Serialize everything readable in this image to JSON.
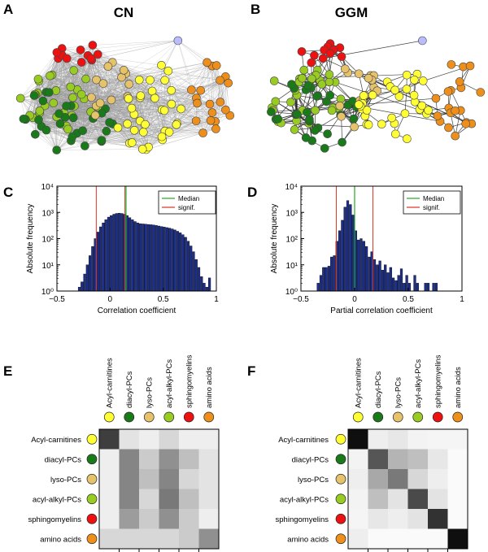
{
  "panels": {
    "A": {
      "letter": "A",
      "title": "CN"
    },
    "B": {
      "letter": "B",
      "title": "GGM"
    },
    "C": {
      "letter": "C"
    },
    "D": {
      "letter": "D"
    },
    "E": {
      "letter": "E"
    },
    "F": {
      "letter": "F"
    }
  },
  "colors": {
    "Acyl-carnitines": "#ffff33",
    "diacyl-PCs": "#1a7a1a",
    "lyso-PCs": "#e6c36a",
    "acyl-alkyl-PCs": "#99cc22",
    "sphingomyelins": "#ee1111",
    "amino acids": "#ee8f1c",
    "other": "#bbbbff",
    "bar": "#1c2f8a",
    "median": "#22aa22",
    "signif": "#dd3322"
  },
  "classes": [
    "Acyl-carnitines",
    "diacyl-PCs",
    "lyso-PCs",
    "acyl-alkyl-PCs",
    "sphingomyelins",
    "amino acids"
  ],
  "chart_data": [
    {
      "id": "C",
      "type": "bar",
      "xlabel": "Correlation coefficient",
      "ylabel": "Absolute frequency",
      "xlim": [
        -0.5,
        1
      ],
      "ylim_log10": [
        0,
        4
      ],
      "xticks": [
        "−0.5",
        "0",
        "0.5",
        "1"
      ],
      "yticks": [
        "10⁰",
        "10¹",
        "10²",
        "10³",
        "10⁴"
      ],
      "legend": [
        {
          "label": "Median"
        },
        {
          "label": "signif."
        }
      ],
      "median": 0.15,
      "signif": [
        -0.13,
        0.14
      ],
      "bin_start": -0.3,
      "bin_width": 0.025,
      "log10_counts": [
        0.15,
        0.35,
        0.65,
        1.0,
        1.35,
        1.7,
        2.0,
        2.25,
        2.45,
        2.6,
        2.72,
        2.82,
        2.88,
        2.93,
        2.96,
        2.97,
        2.96,
        2.93,
        2.88,
        2.8,
        2.72,
        2.65,
        2.6,
        2.57,
        2.56,
        2.55,
        2.54,
        2.53,
        2.52,
        2.5,
        2.48,
        2.46,
        2.44,
        2.42,
        2.4,
        2.37,
        2.33,
        2.28,
        2.22,
        2.15,
        2.05,
        1.9,
        1.72,
        1.5,
        1.2,
        0.9,
        0.55,
        0.3,
        0.15,
        0.5
      ]
    },
    {
      "id": "D",
      "type": "bar",
      "xlabel": "Partial correlation coefficient",
      "ylabel": "Absolute frequency",
      "xlim": [
        -0.5,
        1
      ],
      "ylim_log10": [
        0,
        4
      ],
      "xticks": [
        "−0.5",
        "0",
        "0.5",
        "1"
      ],
      "yticks": [
        "10⁰",
        "10¹",
        "10²",
        "10³",
        "10⁴"
      ],
      "legend": [
        {
          "label": "Median"
        },
        {
          "label": "signif."
        }
      ],
      "median": 0.0,
      "signif": [
        -0.17,
        0.17
      ],
      "bin_start": -0.35,
      "bin_width": 0.025,
      "log10_counts": [
        0.3,
        0.6,
        0.9,
        0.9,
        0.95,
        1.3,
        1.35,
        1.9,
        2.3,
        2.7,
        3.2,
        3.45,
        3.3,
        2.9,
        2.3,
        1.95,
        2.0,
        1.9,
        1.7,
        1.3,
        1.5,
        1.2,
        1.0,
        1.15,
        0.8,
        1.0,
        0.7,
        0.9,
        0.5,
        0.4,
        0.6,
        0.85,
        0.3,
        0.6,
        0.3,
        0.0,
        0.6,
        0.3,
        0.0,
        0.0,
        0.3,
        0.3,
        0.0,
        0.3,
        0.3
      ]
    },
    {
      "id": "E",
      "type": "heatmap",
      "rows": [
        "Acyl-carnitines",
        "diacyl-PCs",
        "lyso-PCs",
        "acyl-alkyl-PCs",
        "sphingomyelins",
        "amino acids"
      ],
      "cols": [
        "Acyl-carnitines",
        "diacyl-PCs",
        "lyso-PCs",
        "acyl-alkyl-PCs",
        "sphingomyelins",
        "amino acids"
      ],
      "values": [
        [
          0.8,
          0.1,
          0.05,
          0.15,
          0.05,
          0.05
        ],
        [
          0.05,
          0.5,
          0.2,
          0.45,
          0.25,
          0.1
        ],
        [
          0.05,
          0.5,
          0.25,
          0.5,
          0.15,
          0.1
        ],
        [
          0.05,
          0.5,
          0.15,
          0.55,
          0.25,
          0.1
        ],
        [
          0.05,
          0.4,
          0.2,
          0.45,
          0.2,
          0.05
        ],
        [
          0.15,
          0.15,
          0.15,
          0.15,
          0.2,
          0.45
        ]
      ]
    },
    {
      "id": "F",
      "type": "heatmap",
      "rows": [
        "Acyl-carnitines",
        "diacyl-PCs",
        "lyso-PCs",
        "acyl-alkyl-PCs",
        "sphingomyelins",
        "amino acids"
      ],
      "cols": [
        "Acyl-carnitines",
        "diacyl-PCs",
        "lyso-PCs",
        "acyl-alkyl-PCs",
        "sphingomyelins",
        "amino acids"
      ],
      "values": [
        [
          1.0,
          0.05,
          0.08,
          0.03,
          0.02,
          0.02
        ],
        [
          0.03,
          0.7,
          0.3,
          0.25,
          0.08,
          0.0
        ],
        [
          0.05,
          0.35,
          0.55,
          0.15,
          0.05,
          0.0
        ],
        [
          0.03,
          0.25,
          0.1,
          0.75,
          0.1,
          0.0
        ],
        [
          0.02,
          0.08,
          0.05,
          0.1,
          0.85,
          0.0
        ],
        [
          0.05,
          0.0,
          0.0,
          0.0,
          0.0,
          1.0
        ]
      ]
    }
  ]
}
